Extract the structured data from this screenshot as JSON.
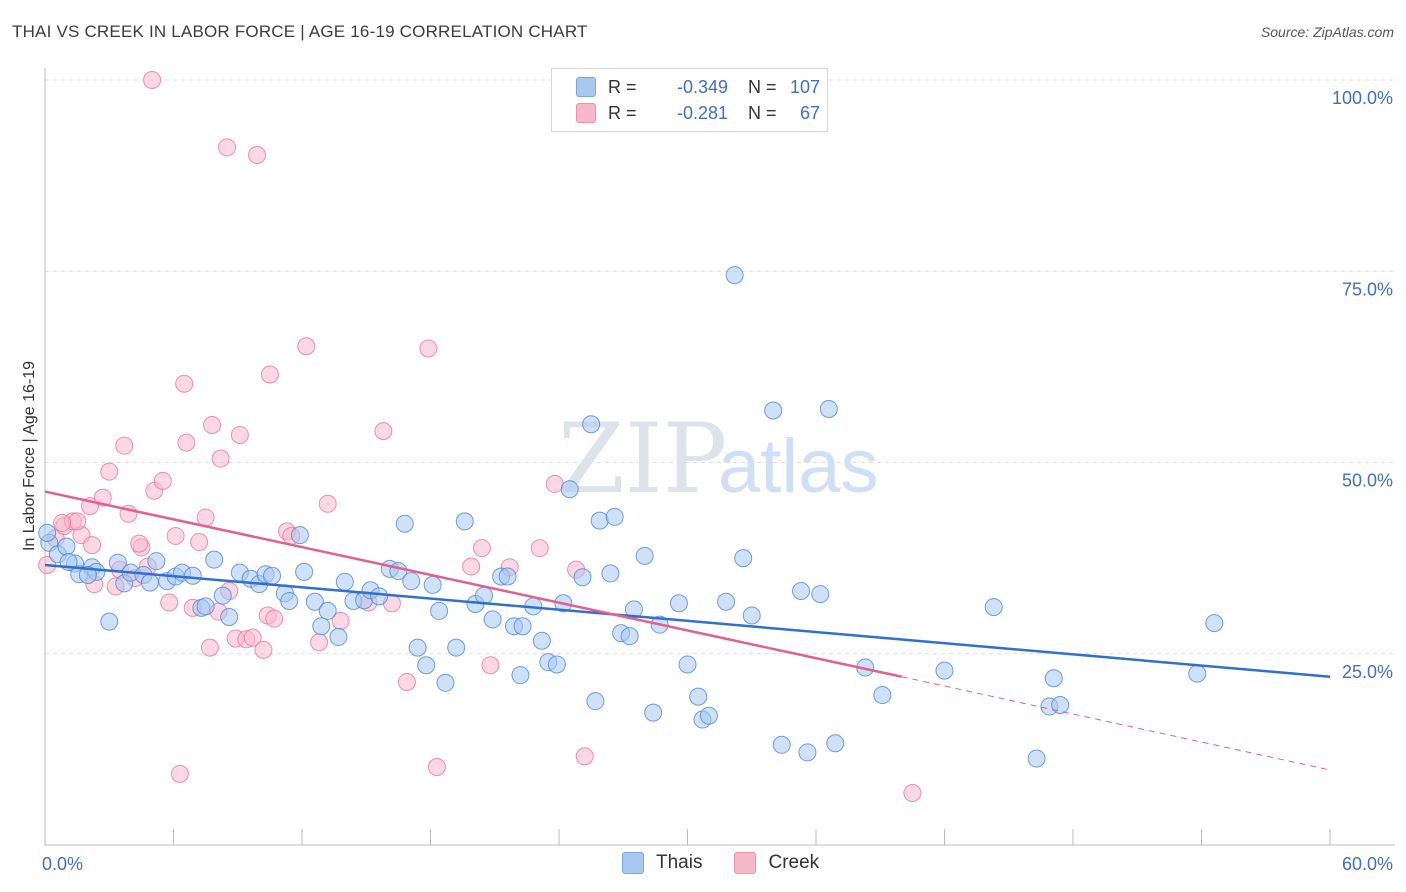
{
  "header": {
    "title": "THAI VS CREEK IN LABOR FORCE | AGE 16-19 CORRELATION CHART",
    "source": "Source: ZipAtlas.com"
  },
  "watermark": {
    "zip": "ZIP",
    "atlas": "atlas"
  },
  "legend": {
    "rows": [
      {
        "r_label": "R =",
        "r_value": "-0.349",
        "n_label": "N =",
        "n_value": "107",
        "color": "#a8c8f0"
      },
      {
        "r_label": "R =",
        "r_value": "-0.281",
        "n_label": "N =",
        "n_value": "67",
        "color": "#f8b8cc"
      }
    ]
  },
  "bottom_legend": [
    {
      "label": "Thais",
      "color": "#a8c8f0"
    },
    {
      "label": "Creek",
      "color": "#f8b8cc"
    }
  ],
  "chart_data": {
    "type": "scatter",
    "title": "THAI VS CREEK IN LABOR FORCE | AGE 16-19 CORRELATION CHART",
    "xlabel": "",
    "ylabel": "In Labor Force | Age 16-19",
    "xlim": [
      0,
      60
    ],
    "ylim": [
      0,
      100
    ],
    "x_tick_labels": [
      "0.0%",
      "60.0%"
    ],
    "y_tick_labels": [
      "100.0%",
      "75.0%",
      "50.0%",
      "25.0%"
    ],
    "y_ticks": [
      100,
      75,
      50,
      25
    ],
    "grid": true,
    "legend_position": "top-center",
    "colors": {
      "thais": "#4f86d6",
      "thais_fill": "#a8c8f0",
      "thais_line": "#2f6fd0",
      "creek": "#e7769c",
      "creek_fill": "#f8b8cc",
      "creek_line": "#e0608e",
      "tick_label": "#3f6fc4"
    },
    "series": [
      {
        "name": "Thais",
        "trend": {
          "x0": 0,
          "y0": 36.6,
          "x1": 60,
          "y1": 22.0
        },
        "points": [
          [
            0.2,
            39.5
          ],
          [
            0.6,
            38
          ],
          [
            1.0,
            39
          ],
          [
            1.4,
            36.8
          ],
          [
            1.6,
            35.4
          ],
          [
            2.2,
            36.3
          ],
          [
            2.4,
            35.7
          ],
          [
            3.0,
            29.2
          ],
          [
            3.4,
            36.9
          ],
          [
            3.7,
            34.2
          ],
          [
            4.0,
            35.6
          ],
          [
            4.6,
            35.3
          ],
          [
            4.9,
            34.3
          ],
          [
            5.2,
            37.1
          ],
          [
            5.7,
            34.5
          ],
          [
            6.1,
            35.1
          ],
          [
            6.4,
            35.6
          ],
          [
            6.9,
            35.2
          ],
          [
            7.3,
            31
          ],
          [
            7.5,
            31.2
          ],
          [
            7.9,
            37.3
          ],
          [
            8.3,
            32.6
          ],
          [
            8.6,
            29.8
          ],
          [
            9.1,
            35.6
          ],
          [
            9.6,
            34.8
          ],
          [
            10,
            34.1
          ],
          [
            10.3,
            35.4
          ],
          [
            10.6,
            35.2
          ],
          [
            11.2,
            32.9
          ],
          [
            11.4,
            31.9
          ],
          [
            11.9,
            40.5
          ],
          [
            12.1,
            35.7
          ],
          [
            12.6,
            31.8
          ],
          [
            12.9,
            28.6
          ],
          [
            13.2,
            30.6
          ],
          [
            13.7,
            27.2
          ],
          [
            14.0,
            34.4
          ],
          [
            14.4,
            31.9
          ],
          [
            14.9,
            32
          ],
          [
            15.2,
            33.3
          ],
          [
            15.6,
            32.5
          ],
          [
            16.1,
            36.1
          ],
          [
            16.5,
            35.8
          ],
          [
            16.8,
            42
          ],
          [
            17.1,
            34.5
          ],
          [
            17.4,
            25.8
          ],
          [
            17.8,
            23.5
          ],
          [
            18.1,
            34
          ],
          [
            18.4,
            30.6
          ],
          [
            18.7,
            21.2
          ],
          [
            19.2,
            25.8
          ],
          [
            19.6,
            42.3
          ],
          [
            20.1,
            31.5
          ],
          [
            20.5,
            32.6
          ],
          [
            20.9,
            29.5
          ],
          [
            21.3,
            35.1
          ],
          [
            21.6,
            35.1
          ],
          [
            21.9,
            28.6
          ],
          [
            22.2,
            22.2
          ],
          [
            22.3,
            28.6
          ],
          [
            22.8,
            31.2
          ],
          [
            23.2,
            26.7
          ],
          [
            23.5,
            23.9
          ],
          [
            23.9,
            23.6
          ],
          [
            24.2,
            31.6
          ],
          [
            24.5,
            46.5
          ],
          [
            25.1,
            35
          ],
          [
            25.5,
            55
          ],
          [
            25.7,
            18.8
          ],
          [
            25.9,
            42.4
          ],
          [
            26.4,
            35.5
          ],
          [
            26.6,
            42.9
          ],
          [
            26.9,
            27.7
          ],
          [
            27.3,
            27.3
          ],
          [
            27.5,
            30.8
          ],
          [
            28.0,
            37.8
          ],
          [
            28.4,
            17.3
          ],
          [
            28.7,
            28.8
          ],
          [
            29.6,
            31.6
          ],
          [
            30.0,
            23.6
          ],
          [
            30.5,
            19.4
          ],
          [
            30.7,
            16.4
          ],
          [
            31.0,
            16.9
          ],
          [
            31.8,
            31.8
          ],
          [
            32.2,
            74.5
          ],
          [
            32.6,
            37.5
          ],
          [
            33.0,
            30
          ],
          [
            34.0,
            56.8
          ],
          [
            34.4,
            13.1
          ],
          [
            35.3,
            33.2
          ],
          [
            35.6,
            12.1
          ],
          [
            36.2,
            32.8
          ],
          [
            36.6,
            57
          ],
          [
            36.9,
            13.3
          ],
          [
            38.3,
            23.2
          ],
          [
            39.1,
            19.6
          ],
          [
            42.0,
            22.8
          ],
          [
            44.3,
            31.1
          ],
          [
            46.3,
            11.3
          ],
          [
            46.9,
            18.1
          ],
          [
            47.1,
            21.8
          ],
          [
            47.4,
            18.3
          ],
          [
            53.8,
            22.4
          ],
          [
            54.6,
            29
          ],
          [
            0.1,
            40.8
          ],
          [
            1.1,
            37
          ],
          [
            2.0,
            35.3
          ]
        ]
      },
      {
        "name": "Creek",
        "trend": {
          "x0": 0,
          "y0": 46.2,
          "x1": 40,
          "y1": 22.0
        },
        "trend_ext": {
          "x0": 40,
          "y0": 22.0,
          "x1": 60,
          "y1": 9.8
        },
        "points": [
          [
            0.1,
            36.6
          ],
          [
            0.5,
            40.1
          ],
          [
            0.9,
            41.7
          ],
          [
            1.3,
            42.3
          ],
          [
            1.7,
            40.5
          ],
          [
            2.1,
            44.3
          ],
          [
            2.3,
            34.1
          ],
          [
            2.7,
            45.4
          ],
          [
            3.0,
            48.8
          ],
          [
            3.3,
            33.8
          ],
          [
            3.7,
            52.2
          ],
          [
            3.9,
            43.3
          ],
          [
            4.2,
            34.9
          ],
          [
            4.5,
            38.9
          ],
          [
            4.8,
            36.4
          ],
          [
            5.1,
            46.3
          ],
          [
            5.5,
            47.6
          ],
          [
            5.8,
            31.7
          ],
          [
            6.1,
            40.4
          ],
          [
            6.3,
            9.3
          ],
          [
            6.5,
            60.3
          ],
          [
            6.6,
            52.6
          ],
          [
            6.9,
            31
          ],
          [
            7.2,
            39.6
          ],
          [
            7.5,
            42.8
          ],
          [
            7.7,
            25.8
          ],
          [
            7.8,
            54.9
          ],
          [
            8.1,
            30.5
          ],
          [
            8.2,
            50.5
          ],
          [
            8.6,
            33.2
          ],
          [
            8.9,
            27
          ],
          [
            9.1,
            53.6
          ],
          [
            9.4,
            26.9
          ],
          [
            9.7,
            27.1
          ],
          [
            10.2,
            25.5
          ],
          [
            10.4,
            30
          ],
          [
            10.5,
            61.5
          ],
          [
            10.7,
            29.6
          ],
          [
            11.3,
            41
          ],
          [
            11.5,
            40.4
          ],
          [
            12.2,
            65.2
          ],
          [
            12.8,
            26.5
          ],
          [
            13.2,
            44.6
          ],
          [
            13.8,
            29.3
          ],
          [
            15.1,
            31.7
          ],
          [
            15.8,
            54.1
          ],
          [
            16.2,
            31.6
          ],
          [
            16.9,
            21.3
          ],
          [
            17.9,
            64.9
          ],
          [
            18.3,
            10.2
          ],
          [
            19.9,
            36.4
          ],
          [
            20.4,
            38.8
          ],
          [
            20.8,
            23.5
          ],
          [
            21.7,
            36.3
          ],
          [
            23.1,
            38.8
          ],
          [
            23.8,
            47.2
          ],
          [
            24.8,
            36
          ],
          [
            25.2,
            11.6
          ],
          [
            40.5,
            6.8
          ],
          [
            5.0,
            100
          ],
          [
            8.5,
            91.2
          ],
          [
            9.9,
            90.2
          ],
          [
            2.2,
            39.2
          ],
          [
            1.5,
            42.3
          ],
          [
            0.8,
            42.1
          ],
          [
            3.5,
            36
          ],
          [
            4.4,
            39.4
          ]
        ]
      }
    ]
  }
}
